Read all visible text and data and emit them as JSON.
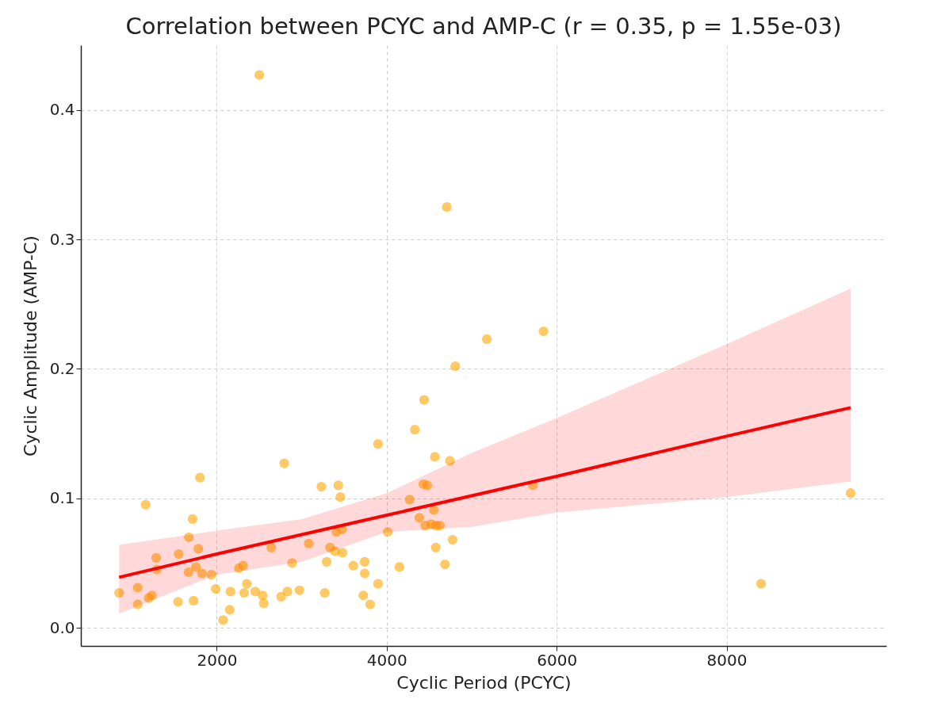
{
  "chart_data": {
    "type": "scatter",
    "title": "Correlation between PCYC and AMP-C (r = 0.35, p = 1.55e-03)",
    "xlabel": "Cyclic Period (PCYC)",
    "ylabel": "Cyclic Amplitude (AMP-C)",
    "xlim": [
      400,
      9880
    ],
    "ylim": [
      -0.014,
      0.45
    ],
    "xticks": [
      2000,
      4000,
      6000,
      8000
    ],
    "yticks": [
      {
        "value": 0,
        "label": "0.0"
      },
      0.1,
      0.2,
      0.3,
      0.4
    ],
    "grid": true,
    "series": [
      {
        "color": "#ffa500",
        "marker": "circle",
        "x": [
          1802,
          1163,
          1715,
          1671,
          1783,
          1287,
          1551,
          1296,
          1668,
          1755,
          1826,
          1938,
          2642,
          2260,
          2310,
          2887,
          850,
          1070,
          1070,
          1200,
          1237,
          1544,
          1727,
          1988,
          2161,
          2074,
          2152,
          2322,
          2353,
          2453,
          2540,
          2552,
          2757,
          2831,
          2794,
          3231,
          3430,
          3454,
          3898,
          4567,
          4431,
          4478,
          4270,
          4555,
          4384,
          4453,
          4524,
          4580,
          4626,
          4012,
          3408,
          3476,
          3082,
          3333,
          3392,
          3479,
          4577,
          3293,
          3606,
          3740,
          3740,
          4149,
          4685,
          3898,
          3724,
          3805,
          3271,
          2973,
          5845,
          5178,
          4807,
          4440,
          4331,
          5721,
          4775,
          9460,
          8406,
          4707,
          4744,
          2500
        ],
        "values": [
          0.116,
          0.095,
          0.084,
          0.07,
          0.061,
          0.054,
          0.057,
          0.045,
          0.043,
          0.047,
          0.042,
          0.041,
          0.062,
          0.046,
          0.048,
          0.05,
          0.027,
          0.031,
          0.018,
          0.023,
          0.025,
          0.02,
          0.021,
          0.03,
          0.028,
          0.006,
          0.014,
          0.027,
          0.034,
          0.028,
          0.025,
          0.019,
          0.024,
          0.028,
          0.127,
          0.109,
          0.11,
          0.101,
          0.142,
          0.132,
          0.111,
          0.11,
          0.099,
          0.091,
          0.085,
          0.079,
          0.08,
          0.079,
          0.079,
          0.074,
          0.074,
          0.076,
          0.065,
          0.062,
          0.059,
          0.058,
          0.062,
          0.051,
          0.048,
          0.051,
          0.042,
          0.047,
          0.049,
          0.034,
          0.025,
          0.018,
          0.027,
          0.029,
          0.229,
          0.223,
          0.202,
          0.176,
          0.153,
          0.11,
          0.068,
          0.104,
          0.034,
          0.325,
          0.129,
          0.427
        ]
      },
      {
        "type": "line",
        "color": "#ff0000",
        "x": [
          850,
          2000,
          3000,
          4000,
          5000,
          6000,
          8000,
          9460
        ],
        "values": [
          0.039,
          0.057,
          0.072,
          0.087,
          0.102,
          0.117,
          0.148,
          0.17
        ],
        "lower": [
          0.011,
          0.041,
          0.051,
          0.074,
          0.078,
          0.089,
          0.101,
          0.113
        ],
        "upper": [
          0.064,
          0.075,
          0.084,
          0.104,
          0.135,
          0.162,
          0.219,
          0.262
        ]
      }
    ]
  }
}
